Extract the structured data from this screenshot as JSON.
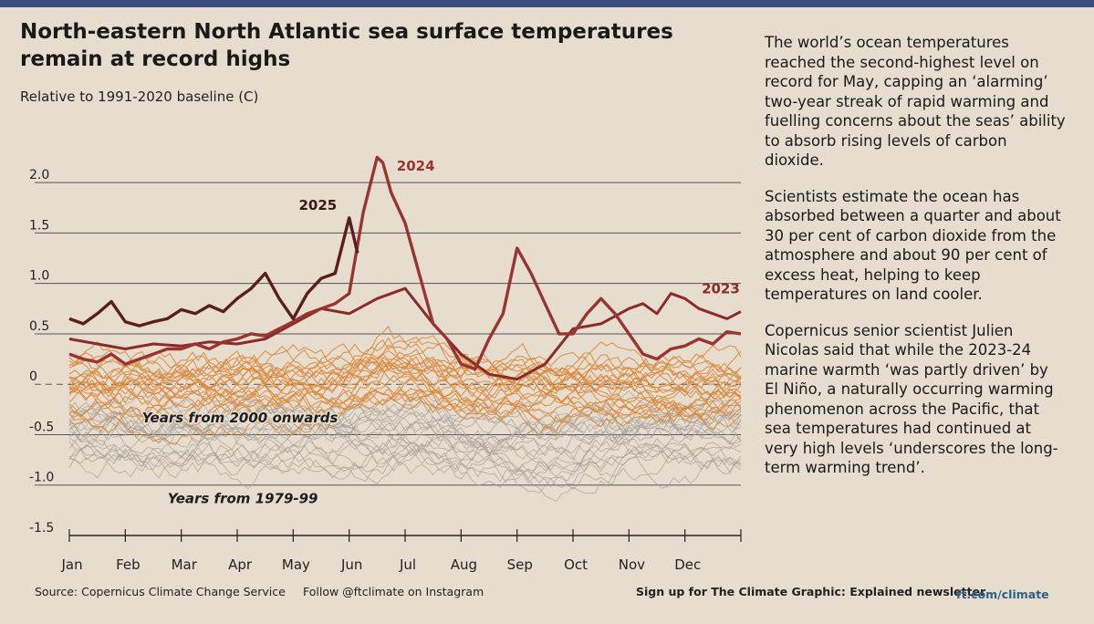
{
  "header": {
    "title": "North-eastern North Atlantic sea surface temperatures remain at record highs",
    "subtitle": "Relative to 1991-2020 baseline (C)"
  },
  "colors": {
    "background": "#e6ddcf",
    "y2025": "#5a1e1e",
    "y2024": "#9a3430",
    "y2023": "#8c2a28",
    "recent": "#d9873a",
    "old": "#a39d94",
    "grid": "#555555"
  },
  "chart_data": {
    "type": "line",
    "title": "North-eastern North Atlantic sea surface temperatures remain at record highs",
    "ylabel": "Relative to 1991-2020 baseline (C)",
    "xlabel": "",
    "ylim": [
      -1.5,
      2.3
    ],
    "yticks": [
      2.0,
      1.5,
      1.0,
      0.5,
      0,
      -0.5,
      -1.0,
      -1.5
    ],
    "ytick_labels": [
      "2.0",
      "1.5",
      "1.0",
      "0.5",
      "0",
      "-0.5",
      "-1.0",
      "-1.5"
    ],
    "x_domain": [
      0,
      12
    ],
    "months": [
      "Jan",
      "Feb",
      "Mar",
      "Apr",
      "May",
      "Jun",
      "Jul",
      "Aug",
      "Sep",
      "Oct",
      "Nov",
      "Dec"
    ],
    "grid": true,
    "series": [
      {
        "name": "2025",
        "label": "2025",
        "x": [
          0,
          0.25,
          0.5,
          0.75,
          1.0,
          1.25,
          1.5,
          1.75,
          2.0,
          2.25,
          2.5,
          2.75,
          3.0,
          3.25,
          3.5,
          3.75,
          4.0,
          4.25,
          4.5,
          4.75,
          5.0,
          5.15
        ],
        "values": [
          0.65,
          0.6,
          0.7,
          0.82,
          0.62,
          0.58,
          0.62,
          0.65,
          0.74,
          0.7,
          0.78,
          0.72,
          0.85,
          0.95,
          1.1,
          0.85,
          0.65,
          0.9,
          1.05,
          1.1,
          1.65,
          1.3
        ]
      },
      {
        "name": "2024",
        "label": "2024",
        "x": [
          0,
          0.25,
          0.5,
          0.75,
          1.0,
          1.25,
          1.5,
          1.75,
          2.0,
          2.25,
          2.5,
          2.75,
          3.0,
          3.25,
          3.5,
          3.75,
          4.0,
          4.25,
          4.5,
          4.75,
          5.0,
          5.25,
          5.5,
          5.6,
          5.75,
          6.0,
          6.25,
          6.5,
          6.75,
          7.0,
          7.25,
          7.5,
          7.75,
          8.0,
          8.25,
          8.5,
          8.75,
          9.0,
          9.25,
          9.5,
          9.75,
          10.0,
          10.25,
          10.5,
          10.75,
          11.0,
          11.25,
          11.5,
          11.75,
          12.0
        ],
        "values": [
          0.3,
          0.25,
          0.22,
          0.3,
          0.2,
          0.25,
          0.3,
          0.35,
          0.35,
          0.4,
          0.35,
          0.42,
          0.45,
          0.5,
          0.48,
          0.55,
          0.62,
          0.7,
          0.75,
          0.8,
          0.9,
          1.7,
          2.25,
          2.2,
          1.9,
          1.6,
          1.1,
          0.6,
          0.45,
          0.2,
          0.15,
          0.45,
          0.7,
          1.35,
          1.1,
          0.8,
          0.5,
          0.5,
          0.7,
          0.85,
          0.7,
          0.5,
          0.3,
          0.25,
          0.35,
          0.38,
          0.45,
          0.4,
          0.52,
          0.5
        ]
      },
      {
        "name": "2023",
        "label": "2023",
        "x": [
          0,
          0.5,
          1.0,
          1.5,
          2.0,
          2.5,
          3.0,
          3.5,
          4.0,
          4.5,
          5.0,
          5.5,
          6.0,
          6.5,
          7.0,
          7.5,
          8.0,
          8.5,
          9.0,
          9.5,
          10.0,
          10.25,
          10.5,
          10.75,
          11.0,
          11.25,
          11.5,
          11.75,
          12.0
        ],
        "values": [
          0.45,
          0.4,
          0.35,
          0.4,
          0.38,
          0.42,
          0.4,
          0.45,
          0.6,
          0.75,
          0.7,
          0.85,
          0.95,
          0.6,
          0.3,
          0.1,
          0.05,
          0.2,
          0.55,
          0.6,
          0.75,
          0.8,
          0.7,
          0.9,
          0.85,
          0.75,
          0.7,
          0.65,
          0.72
        ]
      }
    ],
    "band_labels": {
      "recent": "Years from 2000 onwards",
      "old": "Years from 1979-99"
    }
  },
  "article": {
    "paragraphs": [
      "The world’s ocean temperatures reached the second-highest level on record for May, capping an ‘alarming’ two-year streak of rapid warming and fuelling concerns about the seas’ ability to absorb rising levels of carbon dioxide.",
      "Scientists estimate the ocean has absorbed between a quarter and about 30 per cent of carbon dioxide from the atmosphere and about 90 per cent of excess heat, helping to keep temperatures on land cooler.",
      "Copernicus senior scientist Julien Nicolas said that while the 2023-24 marine warmth ‘was partly driven’ by El Niño, a naturally occurring warming phenomenon across the Pacific, that sea temperatures had continued at very high levels ‘underscores the long-term warming trend’."
    ]
  },
  "footer": {
    "source": "Source: Copernicus Climate Change Service",
    "follow": "Follow @ftclimate on Instagram",
    "signup": "Sign up for The Climate Graphic: Explained newsletter",
    "link": "ft.com/climate"
  }
}
